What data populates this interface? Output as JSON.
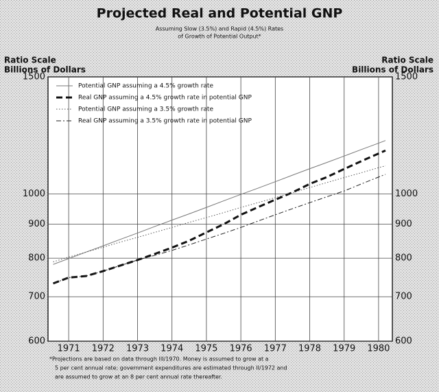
{
  "chart_data": {
    "type": "line",
    "title": "Projected Real and Potential GNP",
    "subtitle": [
      "Assuming Slow (3.5%) and Rapid (4.5%) Rates",
      "of Growth of Potential Output*"
    ],
    "y_axis_label": [
      "Ratio Scale",
      "Billions of Dollars"
    ],
    "y2_axis_label": [
      "Ratio Scale",
      "Billions of Dollars"
    ],
    "footnote": [
      "*Projections are based on data through III/1970. Money is assumed to grow at a",
      "5 per cent annual rate; government expenditures are estimated through II/1972 and",
      "are assumed to grow at an 8 per cent annual rate thereafter."
    ],
    "log_scale": true,
    "grid": true,
    "legend": "upper left",
    "x": [
      1970.55,
      1971,
      1971.5,
      1972,
      1972.5,
      1973,
      1973.5,
      1974,
      1974.5,
      1975,
      1975.5,
      1976,
      1976.5,
      1977,
      1977.5,
      1978,
      1978.5,
      1979,
      1979.5,
      1980,
      1980.2
    ],
    "xlim": [
      1970.4,
      1980.4
    ],
    "xticks": [
      1971,
      1972,
      1973,
      1974,
      1975,
      1976,
      1977,
      1978,
      1979,
      1980
    ],
    "ylim": [
      600,
      1500
    ],
    "yticks": [
      600,
      700,
      800,
      900,
      1000,
      1500
    ],
    "series": [
      {
        "name": "Potential GNP assuming a 4.5% growth rate",
        "color": "#777777",
        "line_style": "solid",
        "width": 1,
        "values": [
          783,
          799,
          817,
          835,
          854,
          873,
          893,
          913,
          933,
          954,
          976,
          998,
          1020,
          1043,
          1067,
          1091,
          1115,
          1140,
          1166,
          1192,
          1203
        ]
      },
      {
        "name": "Real GNP assuming a 4.5% growth rate in potential GNP",
        "color": "#111111",
        "line_style": "dashed",
        "width": 3,
        "values": [
          733,
          748,
          752,
          765,
          780,
          795,
          812,
          830,
          850,
          875,
          900,
          930,
          955,
          980,
          1005,
          1035,
          1060,
          1090,
          1120,
          1150,
          1162
        ]
      },
      {
        "name": "Potential GNP assuming a 3.5% growth rate",
        "color": "#555555",
        "line_style": "dotted",
        "width": 1,
        "values": [
          790,
          803,
          817,
          831,
          846,
          860,
          875,
          890,
          906,
          921,
          937,
          954,
          970,
          987,
          1004,
          1022,
          1040,
          1058,
          1076,
          1095,
          1102
        ]
      },
      {
        "name": "Real GNP assuming a 3.5% growth rate in potential GNP",
        "color": "#222222",
        "line_style": "dashdot",
        "width": 1,
        "values": [
          733,
          748,
          752,
          765,
          780,
          795,
          808,
          822,
          838,
          855,
          872,
          890,
          910,
          930,
          950,
          970,
          990,
          1010,
          1035,
          1060,
          1070
        ]
      }
    ]
  }
}
